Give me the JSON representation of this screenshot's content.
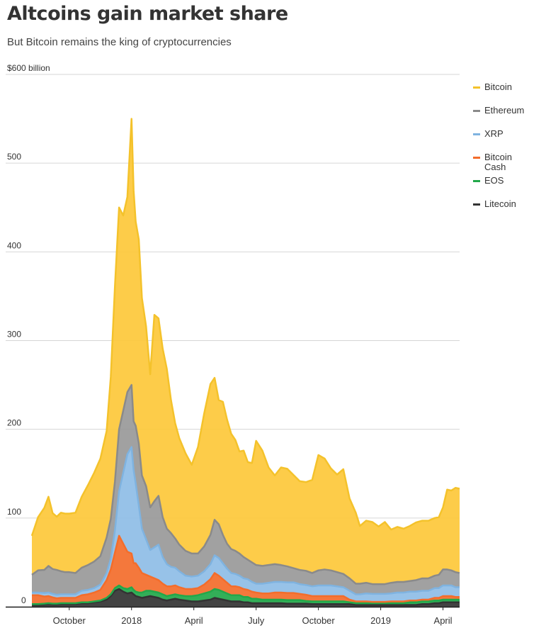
{
  "header": {
    "title": "Altcoins gain market share",
    "subtitle": "But Bitcoin remains the king of cryptocurrencies"
  },
  "chart_data": {
    "type": "area",
    "stacked": true,
    "title": "Altcoins gain market share",
    "subtitle": "But Bitcoin remains the king of cryptocurrencies",
    "y_unit_label": "$600 billion",
    "ylim": [
      0,
      600
    ],
    "yticks": [
      0,
      100,
      200,
      300,
      400,
      500,
      600
    ],
    "ytick_labels": [
      "0",
      "100",
      "200",
      "300",
      "400",
      "500",
      "$600 billion"
    ],
    "x_unit": "months since Aug 1, 2017",
    "xlim": [
      0.2,
      20.8
    ],
    "xticks": [
      {
        "label": "October",
        "x": 2
      },
      {
        "label": "2018",
        "x": 5
      },
      {
        "label": "April",
        "x": 8
      },
      {
        "label": "July",
        "x": 11
      },
      {
        "label": "October",
        "x": 14
      },
      {
        "label": "2019",
        "x": 17
      },
      {
        "label": "April",
        "x": 20
      }
    ],
    "x": [
      0.2,
      0.5,
      0.8,
      1.0,
      1.2,
      1.4,
      1.6,
      1.8,
      2.0,
      2.3,
      2.6,
      2.9,
      3.2,
      3.5,
      3.8,
      4.0,
      4.2,
      4.4,
      4.6,
      4.8,
      5.0,
      5.1,
      5.2,
      5.35,
      5.5,
      5.7,
      5.9,
      6.1,
      6.3,
      6.5,
      6.7,
      6.9,
      7.1,
      7.3,
      7.6,
      7.9,
      8.2,
      8.5,
      8.8,
      9.0,
      9.2,
      9.4,
      9.6,
      9.8,
      10.0,
      10.2,
      10.4,
      10.6,
      10.8,
      11.0,
      11.3,
      11.6,
      11.9,
      12.2,
      12.5,
      12.8,
      13.1,
      13.4,
      13.7,
      14.0,
      14.3,
      14.6,
      14.9,
      15.2,
      15.5,
      15.8,
      16.0,
      16.3,
      16.6,
      16.9,
      17.2,
      17.5,
      17.8,
      18.1,
      18.4,
      18.7,
      19.0,
      19.3,
      19.6,
      19.8,
      20.0,
      20.2,
      20.4,
      20.6,
      20.8
    ],
    "series": [
      {
        "name": "Litecoin",
        "color": "#333333",
        "values": [
          2,
          2,
          2.5,
          3,
          2.5,
          2.5,
          3,
          3,
          3,
          3,
          4,
          4,
          5,
          6,
          8,
          12,
          18,
          20,
          17,
          15,
          16,
          14,
          12,
          11,
          10,
          11,
          12,
          11,
          10,
          8,
          7,
          8,
          9,
          8,
          7,
          6,
          6,
          7,
          8,
          10,
          9,
          8,
          7,
          6,
          6,
          6,
          5,
          5,
          4,
          4,
          4,
          4,
          4,
          4,
          3.5,
          3.5,
          3.5,
          3.5,
          3,
          3,
          3,
          3,
          3,
          3,
          3,
          2,
          2,
          2,
          2,
          2,
          2,
          2,
          2,
          2,
          2,
          2,
          3,
          3,
          4,
          4,
          5,
          5,
          5,
          5,
          5
        ]
      },
      {
        "name": "EOS",
        "color": "#22a84a",
        "values": [
          1,
          1,
          1,
          1,
          1,
          1,
          1,
          1,
          1,
          1,
          1,
          1,
          1,
          1,
          2,
          2,
          3,
          4,
          4,
          5,
          6,
          5,
          5,
          5,
          6,
          7,
          6,
          6,
          6,
          6,
          5,
          5,
          5,
          5,
          5,
          6,
          7,
          8,
          9,
          10,
          10,
          9,
          8,
          7,
          7,
          7,
          6,
          6,
          5,
          5,
          4,
          4,
          4,
          4,
          4,
          4,
          4,
          3,
          3,
          3,
          3,
          3,
          3,
          3,
          2,
          2,
          2,
          2,
          2,
          2,
          2,
          2,
          2,
          2,
          3,
          3,
          3,
          3,
          3,
          3,
          3,
          3,
          3,
          3,
          3
        ]
      },
      {
        "name": "Bitcoin Cash",
        "color": "#f36d2b",
        "values": [
          10,
          10,
          8,
          8,
          7,
          6,
          6,
          6,
          6,
          6,
          8,
          9,
          10,
          12,
          20,
          28,
          40,
          56,
          50,
          42,
          38,
          30,
          32,
          28,
          22,
          18,
          16,
          15,
          14,
          12,
          11,
          10,
          10,
          9,
          8,
          8,
          8,
          10,
          14,
          18,
          16,
          14,
          12,
          10,
          10,
          9,
          9,
          8,
          8,
          7,
          7,
          7,
          8,
          8,
          8,
          8,
          7,
          7,
          6,
          6,
          6,
          6,
          6,
          6,
          3,
          2,
          2,
          2,
          1.5,
          1.5,
          1.5,
          2,
          2,
          2,
          2,
          2,
          2,
          2,
          3,
          3,
          4,
          4,
          4,
          3,
          3
        ]
      },
      {
        "name": "XRP",
        "color": "#8ebde6",
        "values": [
          3,
          3,
          4,
          4,
          4,
          4,
          4,
          4,
          4,
          4,
          5,
          5,
          5,
          6,
          8,
          12,
          25,
          50,
          80,
          110,
          120,
          105,
          90,
          70,
          50,
          40,
          30,
          35,
          40,
          30,
          25,
          22,
          20,
          18,
          15,
          14,
          14,
          15,
          17,
          20,
          20,
          18,
          16,
          15,
          14,
          13,
          12,
          12,
          11,
          10,
          11,
          12,
          12,
          12,
          12,
          12,
          11,
          11,
          11,
          12,
          12,
          12,
          11,
          10,
          10,
          8,
          8,
          9,
          9,
          9,
          9,
          9,
          10,
          10,
          10,
          10,
          10,
          10,
          11,
          11,
          12,
          12,
          12,
          11,
          11
        ]
      },
      {
        "name": "Ethereum",
        "color": "#999999",
        "values": [
          20,
          25,
          26,
          30,
          28,
          28,
          26,
          25,
          25,
          24,
          26,
          28,
          30,
          32,
          40,
          45,
          55,
          70,
          70,
          70,
          70,
          55,
          65,
          70,
          60,
          60,
          48,
          52,
          55,
          45,
          40,
          38,
          33,
          30,
          28,
          26,
          25,
          28,
          33,
          40,
          38,
          32,
          28,
          27,
          26,
          25,
          24,
          22,
          22,
          21,
          20,
          20,
          20,
          19,
          18,
          16,
          16,
          16,
          15,
          17,
          18,
          17,
          16,
          15,
          14,
          12,
          12,
          12,
          11,
          11,
          11,
          12,
          12,
          12,
          12,
          13,
          14,
          14,
          14,
          15,
          18,
          18,
          17,
          17,
          16
        ]
      },
      {
        "name": "Bitcoin",
        "color": "#fdc83a",
        "values": [
          44,
          60,
          70,
          78,
          63,
          60,
          66,
          66,
          66,
          68,
          80,
          90,
          100,
          110,
          120,
          160,
          220,
          250,
          220,
          220,
          300,
          260,
          230,
          230,
          200,
          180,
          150,
          210,
          200,
          190,
          180,
          150,
          130,
          120,
          110,
          100,
          120,
          150,
          170,
          160,
          140,
          150,
          140,
          130,
          125,
          115,
          120,
          110,
          112,
          140,
          130,
          110,
          100,
          110,
          110,
          105,
          100,
          100,
          105,
          130,
          125,
          115,
          110,
          118,
          90,
          80,
          65,
          70,
          70,
          65,
          70,
          60,
          62,
          60,
          62,
          65,
          65,
          65,
          65,
          65,
          70,
          90,
          90,
          95,
          95
        ]
      }
    ],
    "legend_order": [
      "Bitcoin",
      "Ethereum",
      "XRP",
      "Bitcoin Cash",
      "EOS",
      "Litecoin"
    ],
    "legend_position": "right"
  },
  "legend": [
    {
      "label": "Bitcoin",
      "color": "#f4c22b"
    },
    {
      "label": "Ethereum",
      "color": "#8a8a8a"
    },
    {
      "label": "XRP",
      "color": "#7fb3e0"
    },
    {
      "label": "Bitcoin Cash",
      "color": "#f36d2b"
    },
    {
      "label": "EOS",
      "color": "#22a84a"
    },
    {
      "label": "Litecoin",
      "color": "#333333"
    }
  ]
}
